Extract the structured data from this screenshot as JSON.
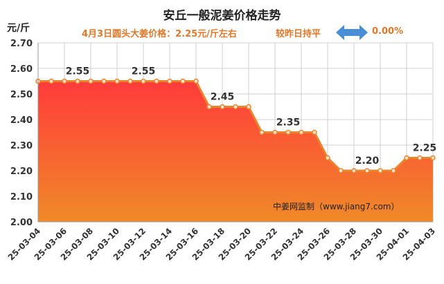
{
  "chart_data": {
    "type": "area",
    "title": "安丘一般泥姜价格走势",
    "subtitle": "4月3日圆头大姜价格：2.25元/斤左右",
    "ylabel": "元/斤",
    "compare_text": "较昨日持平",
    "change_text": "0.00%",
    "watermark": "中姜网监制（www.jiang7.com）",
    "ylim": [
      2.0,
      2.7
    ],
    "y_ticks": [
      "2.00",
      "2.10",
      "2.20",
      "2.30",
      "2.40",
      "2.50",
      "2.60",
      "2.70"
    ],
    "x": [
      "25-03-04",
      "25-03-05",
      "25-03-06",
      "25-03-07",
      "25-03-08",
      "25-03-09",
      "25-03-10",
      "25-03-11",
      "25-03-12",
      "25-03-13",
      "25-03-14",
      "25-03-15",
      "25-03-16",
      "25-03-17",
      "25-03-18",
      "25-03-19",
      "25-03-20",
      "25-03-21",
      "25-03-22",
      "25-03-23",
      "25-03-24",
      "25-03-25",
      "25-03-26",
      "25-03-27",
      "25-03-28",
      "25-03-29",
      "25-03-30",
      "25-03-31",
      "25-04-01",
      "25-04-02",
      "25-04-03"
    ],
    "x_tick_labels": [
      "25-03-04",
      "25-03-06",
      "25-03-08",
      "25-03-10",
      "25-03-12",
      "25-03-14",
      "25-03-16",
      "25-03-18",
      "25-03-20",
      "25-03-22",
      "25-03-24",
      "25-03-26",
      "25-03-28",
      "25-03-30",
      "25-04-01",
      "25-04-03"
    ],
    "values": [
      2.55,
      2.55,
      2.55,
      2.55,
      2.55,
      2.55,
      2.55,
      2.55,
      2.55,
      2.55,
      2.55,
      2.55,
      2.55,
      2.45,
      2.45,
      2.45,
      2.45,
      2.35,
      2.35,
      2.35,
      2.35,
      2.35,
      2.25,
      2.2,
      2.2,
      2.2,
      2.2,
      2.2,
      2.25,
      2.25,
      2.25
    ],
    "data_labels": [
      {
        "x": "25-03-07",
        "text": "2.55"
      },
      {
        "x": "25-03-12",
        "text": "2.55"
      },
      {
        "x": "25-03-18",
        "text": "2.45"
      },
      {
        "x": "25-03-23",
        "text": "2.35"
      },
      {
        "x": "25-03-29",
        "text": "2.20"
      },
      {
        "x": "25-04-03",
        "text": "2.25"
      }
    ],
    "colors": {
      "area_top": "#ff3b3b",
      "area_bottom": "#f08a28",
      "line": "#e8862e",
      "grid": "#d0d0d0",
      "arrow": "#4a8fd6",
      "accent_text": "#e0782a"
    }
  }
}
